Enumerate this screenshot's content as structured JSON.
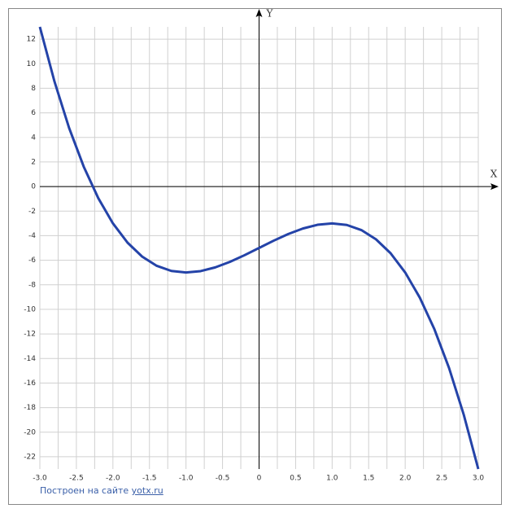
{
  "chart_data": {
    "type": "line",
    "x_label": "X",
    "y_label": "Y",
    "x": [
      -3,
      -2.8,
      -2.6,
      -2.4,
      -2.2,
      -2,
      -1.8,
      -1.6,
      -1.4,
      -1.2,
      -1,
      -0.8,
      -0.6,
      -0.4,
      -0.2,
      0,
      0.2,
      0.4,
      0.6,
      0.8,
      1,
      1.2,
      1.4,
      1.6,
      1.8,
      2,
      2.2,
      2.4,
      2.6,
      2.8,
      3
    ],
    "series": [
      {
        "color": "#2443a8",
        "values": [
          13,
          8.552,
          4.776,
          1.624,
          -0.952,
          -3,
          -4.568,
          -5.704,
          -6.456,
          -6.872,
          -7,
          -6.888,
          -6.584,
          -6.136,
          -5.592,
          -5,
          -4.408,
          -3.864,
          -3.416,
          -3.112,
          -3,
          -3.128,
          -3.544,
          -4.296,
          -5.432,
          -7,
          -9.048,
          -11.624,
          -14.776,
          -18.552,
          -23
        ]
      }
    ],
    "xlim": [
      -3,
      3
    ],
    "ylim": [
      -23,
      13
    ],
    "xticks": [
      {
        "value": -3,
        "label": "-3.0"
      },
      -2.5,
      {
        "value": -2,
        "label": "-2.0"
      },
      -1.5,
      {
        "value": -1,
        "label": "-1.0"
      },
      -0.5,
      0,
      0.5,
      {
        "value": 1,
        "label": "1.0"
      },
      1.5,
      {
        "value": 2,
        "label": "2.0"
      },
      2.5,
      {
        "value": 3,
        "label": "3.0"
      }
    ],
    "yticks": [
      -22,
      -20,
      -18,
      -16,
      -14,
      -12,
      -10,
      -8,
      -6,
      -4,
      -2,
      0,
      2,
      4,
      6,
      8,
      10,
      12
    ],
    "grid": true
  },
  "footer": {
    "text": "Построен на сайте",
    "link": "yotx.ru"
  }
}
